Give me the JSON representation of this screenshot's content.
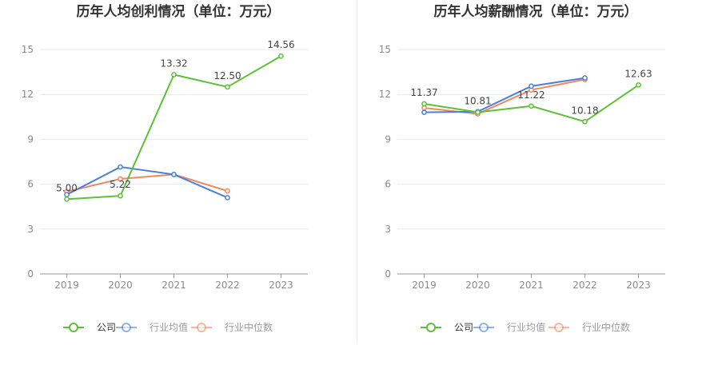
{
  "chart_data": [
    {
      "type": "line",
      "title": "历年人均创利情况（单位：万元）",
      "categories": [
        "2019",
        "2020",
        "2021",
        "2022",
        "2023"
      ],
      "ylim": [
        0,
        15
      ],
      "yticks": [
        0,
        3,
        6,
        9,
        12,
        15
      ],
      "grid": true,
      "legend_position": "bottom",
      "series": [
        {
          "name": "公司",
          "color": "#5ac234",
          "values": [
            5.0,
            5.22,
            13.32,
            12.5,
            14.56
          ],
          "labels": [
            "5.00",
            "5.22",
            "13.32",
            "12.50",
            "14.56"
          ]
        },
        {
          "name": "行业均值",
          "color": "#4a7fdb",
          "values": [
            5.3,
            7.15,
            6.65,
            5.1,
            null
          ]
        },
        {
          "name": "行业中位数",
          "color": "#f2875f",
          "values": [
            5.5,
            6.35,
            6.65,
            5.55,
            null
          ]
        }
      ]
    },
    {
      "type": "line",
      "title": "历年人均薪酬情况（单位：万元）",
      "categories": [
        "2019",
        "2020",
        "2021",
        "2022",
        "2023"
      ],
      "ylim": [
        0,
        15
      ],
      "yticks": [
        0,
        3,
        6,
        9,
        12,
        15
      ],
      "grid": true,
      "legend_position": "bottom",
      "series": [
        {
          "name": "公司",
          "color": "#5ac234",
          "values": [
            11.37,
            10.81,
            11.22,
            10.18,
            12.63
          ],
          "labels": [
            "11.37",
            "10.81",
            "11.22",
            "10.18",
            "12.63"
          ]
        },
        {
          "name": "行业均值",
          "color": "#4a7fdb",
          "values": [
            10.8,
            10.85,
            12.55,
            13.1,
            null
          ]
        },
        {
          "name": "行业中位数",
          "color": "#f2875f",
          "values": [
            11.1,
            10.7,
            12.3,
            13.0,
            null
          ]
        }
      ]
    }
  ]
}
